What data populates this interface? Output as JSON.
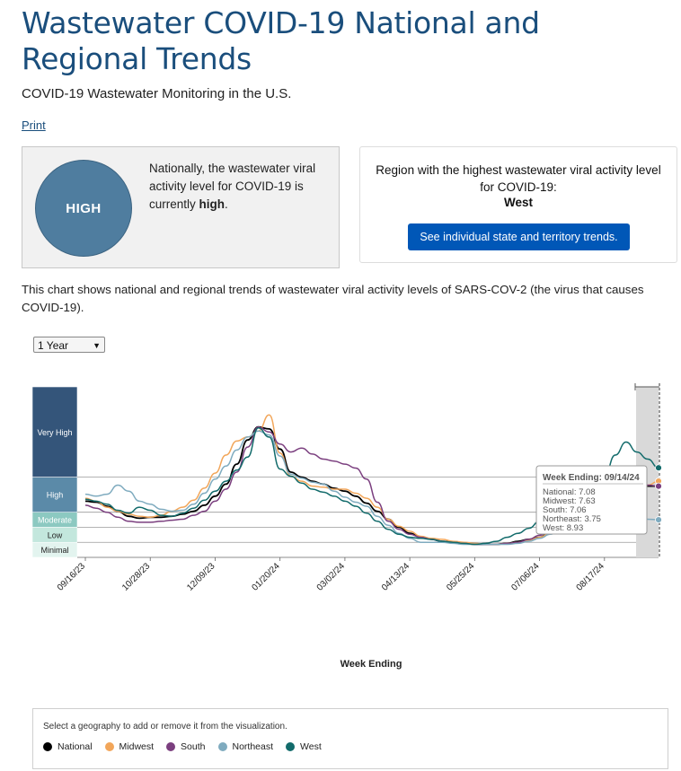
{
  "header": {
    "title": "Wastewater COVID-19 National and Regional Trends",
    "subtitle": "COVID-19 Wastewater Monitoring in the U.S.",
    "print_link": "Print"
  },
  "status": {
    "level_badge": "HIGH",
    "text_prefix": "Nationally, the wastewater viral activity level for COVID-19 is currently ",
    "text_level": "high",
    "text_suffix": "."
  },
  "region": {
    "label": "Region with the highest wastewater viral activity level for COVID-19:",
    "name": "West",
    "button_label": "See individual state and territory trends."
  },
  "description": "This chart shows national and regional trends of wastewater viral activity levels of SARS-COV-2 (the virus that causes COVID-19).",
  "range_select": {
    "selected": "1 Year"
  },
  "legend": {
    "hint": "Select a geography to add or remove it from the visualization.",
    "items": [
      {
        "name": "National",
        "color": "#000000"
      },
      {
        "name": "Midwest",
        "color": "#f2a65a"
      },
      {
        "name": "South",
        "color": "#7b3f7f"
      },
      {
        "name": "Northeast",
        "color": "#7fabbf"
      },
      {
        "name": "West",
        "color": "#126b6b"
      }
    ]
  },
  "tooltip": {
    "title": "Week Ending: 09/14/24",
    "lines": [
      "National: 7.08",
      "Midwest: 7.63",
      "South: 7.06",
      "Northeast: 3.75",
      "West: 8.93"
    ]
  },
  "chart_data": {
    "type": "line",
    "xlabel": "Week Ending",
    "ylabel": "",
    "ylim": [
      0,
      17
    ],
    "x_ticks": [
      "09/16/23",
      "10/28/23",
      "12/09/23",
      "01/20/24",
      "03/02/24",
      "04/13/24",
      "05/25/24",
      "07/06/24",
      "08/17/24"
    ],
    "levels": [
      {
        "name": "Minimal",
        "min": 0,
        "max": 1.5,
        "color": "#e3f4ef"
      },
      {
        "name": "Low",
        "min": 1.5,
        "max": 3,
        "color": "#c3e7dd"
      },
      {
        "name": "Moderate",
        "min": 3,
        "max": 4.5,
        "color": "#8cc9c1"
      },
      {
        "name": "High",
        "min": 4.5,
        "max": 8,
        "color": "#5b8aa8"
      },
      {
        "name": "Very High",
        "min": 8,
        "max": 17,
        "color": "#34557a"
      }
    ],
    "series": [
      {
        "name": "National",
        "color": "#000000",
        "values": [
          5.6,
          5.5,
          5.1,
          4.6,
          4.1,
          3.9,
          4.0,
          4.0,
          4.1,
          4.3,
          4.6,
          5.2,
          6.1,
          7.3,
          9.3,
          11.7,
          13.0,
          12.8,
          10.8,
          8.5,
          8.0,
          7.6,
          7.3,
          6.9,
          6.6,
          6.1,
          5.4,
          4.6,
          3.8,
          3.0,
          2.4,
          2.0,
          1.8,
          1.6,
          1.5,
          1.4,
          1.3,
          1.3,
          1.3,
          1.4,
          1.6,
          1.8,
          2.0,
          2.5,
          3.0,
          3.6,
          4.4,
          5.2,
          6.1,
          6.6,
          7.0,
          7.2,
          7.1,
          7.1
        ]
      },
      {
        "name": "Midwest",
        "color": "#f2a65a",
        "values": [
          5.9,
          5.6,
          5.0,
          4.6,
          4.3,
          4.1,
          4.0,
          4.2,
          4.6,
          5.0,
          5.7,
          6.9,
          8.4,
          10.2,
          11.6,
          12.0,
          12.6,
          14.2,
          10.4,
          8.1,
          7.6,
          7.1,
          7.0,
          6.8,
          6.8,
          6.4,
          5.9,
          5.0,
          3.8,
          3.1,
          2.6,
          2.1,
          1.9,
          1.8,
          1.6,
          1.5,
          1.4,
          1.3,
          1.3,
          1.4,
          1.5,
          1.7,
          2.0,
          2.4,
          3.3,
          4.2,
          5.2,
          6.2,
          7.1,
          7.6,
          7.9,
          7.5,
          7.2,
          7.6
        ]
      },
      {
        "name": "South",
        "color": "#7b3f7f",
        "values": [
          5.2,
          4.9,
          4.5,
          4.0,
          3.6,
          3.5,
          3.5,
          3.6,
          3.7,
          3.8,
          4.2,
          4.6,
          5.6,
          6.8,
          8.5,
          11.0,
          13.0,
          12.5,
          11.3,
          10.5,
          10.9,
          10.3,
          9.8,
          9.6,
          9.3,
          8.9,
          7.8,
          5.5,
          3.6,
          2.8,
          2.3,
          2.0,
          1.8,
          1.6,
          1.5,
          1.4,
          1.3,
          1.3,
          1.3,
          1.4,
          1.5,
          1.8,
          2.2,
          2.7,
          3.4,
          4.1,
          5.0,
          6.4,
          7.7,
          8.7,
          8.5,
          7.8,
          7.2,
          7.1
        ]
      },
      {
        "name": "Northeast",
        "color": "#7fabbf",
        "values": [
          6.3,
          6.1,
          6.3,
          7.2,
          6.6,
          5.6,
          5.3,
          4.8,
          4.6,
          4.7,
          5.3,
          6.4,
          7.8,
          9.1,
          10.7,
          12.0,
          12.6,
          12.2,
          10.1,
          8.3,
          7.9,
          7.5,
          7.3,
          6.6,
          6.0,
          5.5,
          5.1,
          4.1,
          3.2,
          2.4,
          1.9,
          1.5,
          1.5,
          1.5,
          1.4,
          1.3,
          1.3,
          1.3,
          1.3,
          1.3,
          1.4,
          1.6,
          1.9,
          2.3,
          2.7,
          3.1,
          3.4,
          3.6,
          3.8,
          4.0,
          4.1,
          4.0,
          3.8,
          3.75
        ]
      },
      {
        "name": "West",
        "color": "#126b6b",
        "values": [
          5.8,
          5.6,
          5.3,
          4.7,
          4.4,
          5.0,
          4.7,
          4.2,
          4.1,
          4.4,
          4.9,
          5.7,
          6.6,
          7.6,
          8.7,
          10.0,
          12.9,
          12.0,
          8.8,
          8.1,
          7.4,
          6.8,
          6.5,
          6.1,
          5.6,
          5.1,
          4.4,
          3.6,
          2.8,
          2.3,
          2.0,
          1.9,
          1.8,
          1.6,
          1.5,
          1.4,
          1.3,
          1.4,
          1.6,
          2.0,
          2.4,
          2.9,
          3.6,
          4.4,
          6.5,
          7.5,
          8.1,
          7.9,
          8.1,
          10.2,
          11.5,
          10.5,
          9.8,
          8.93
        ]
      }
    ],
    "tooltip_week": "09/14/24",
    "grid": false
  }
}
